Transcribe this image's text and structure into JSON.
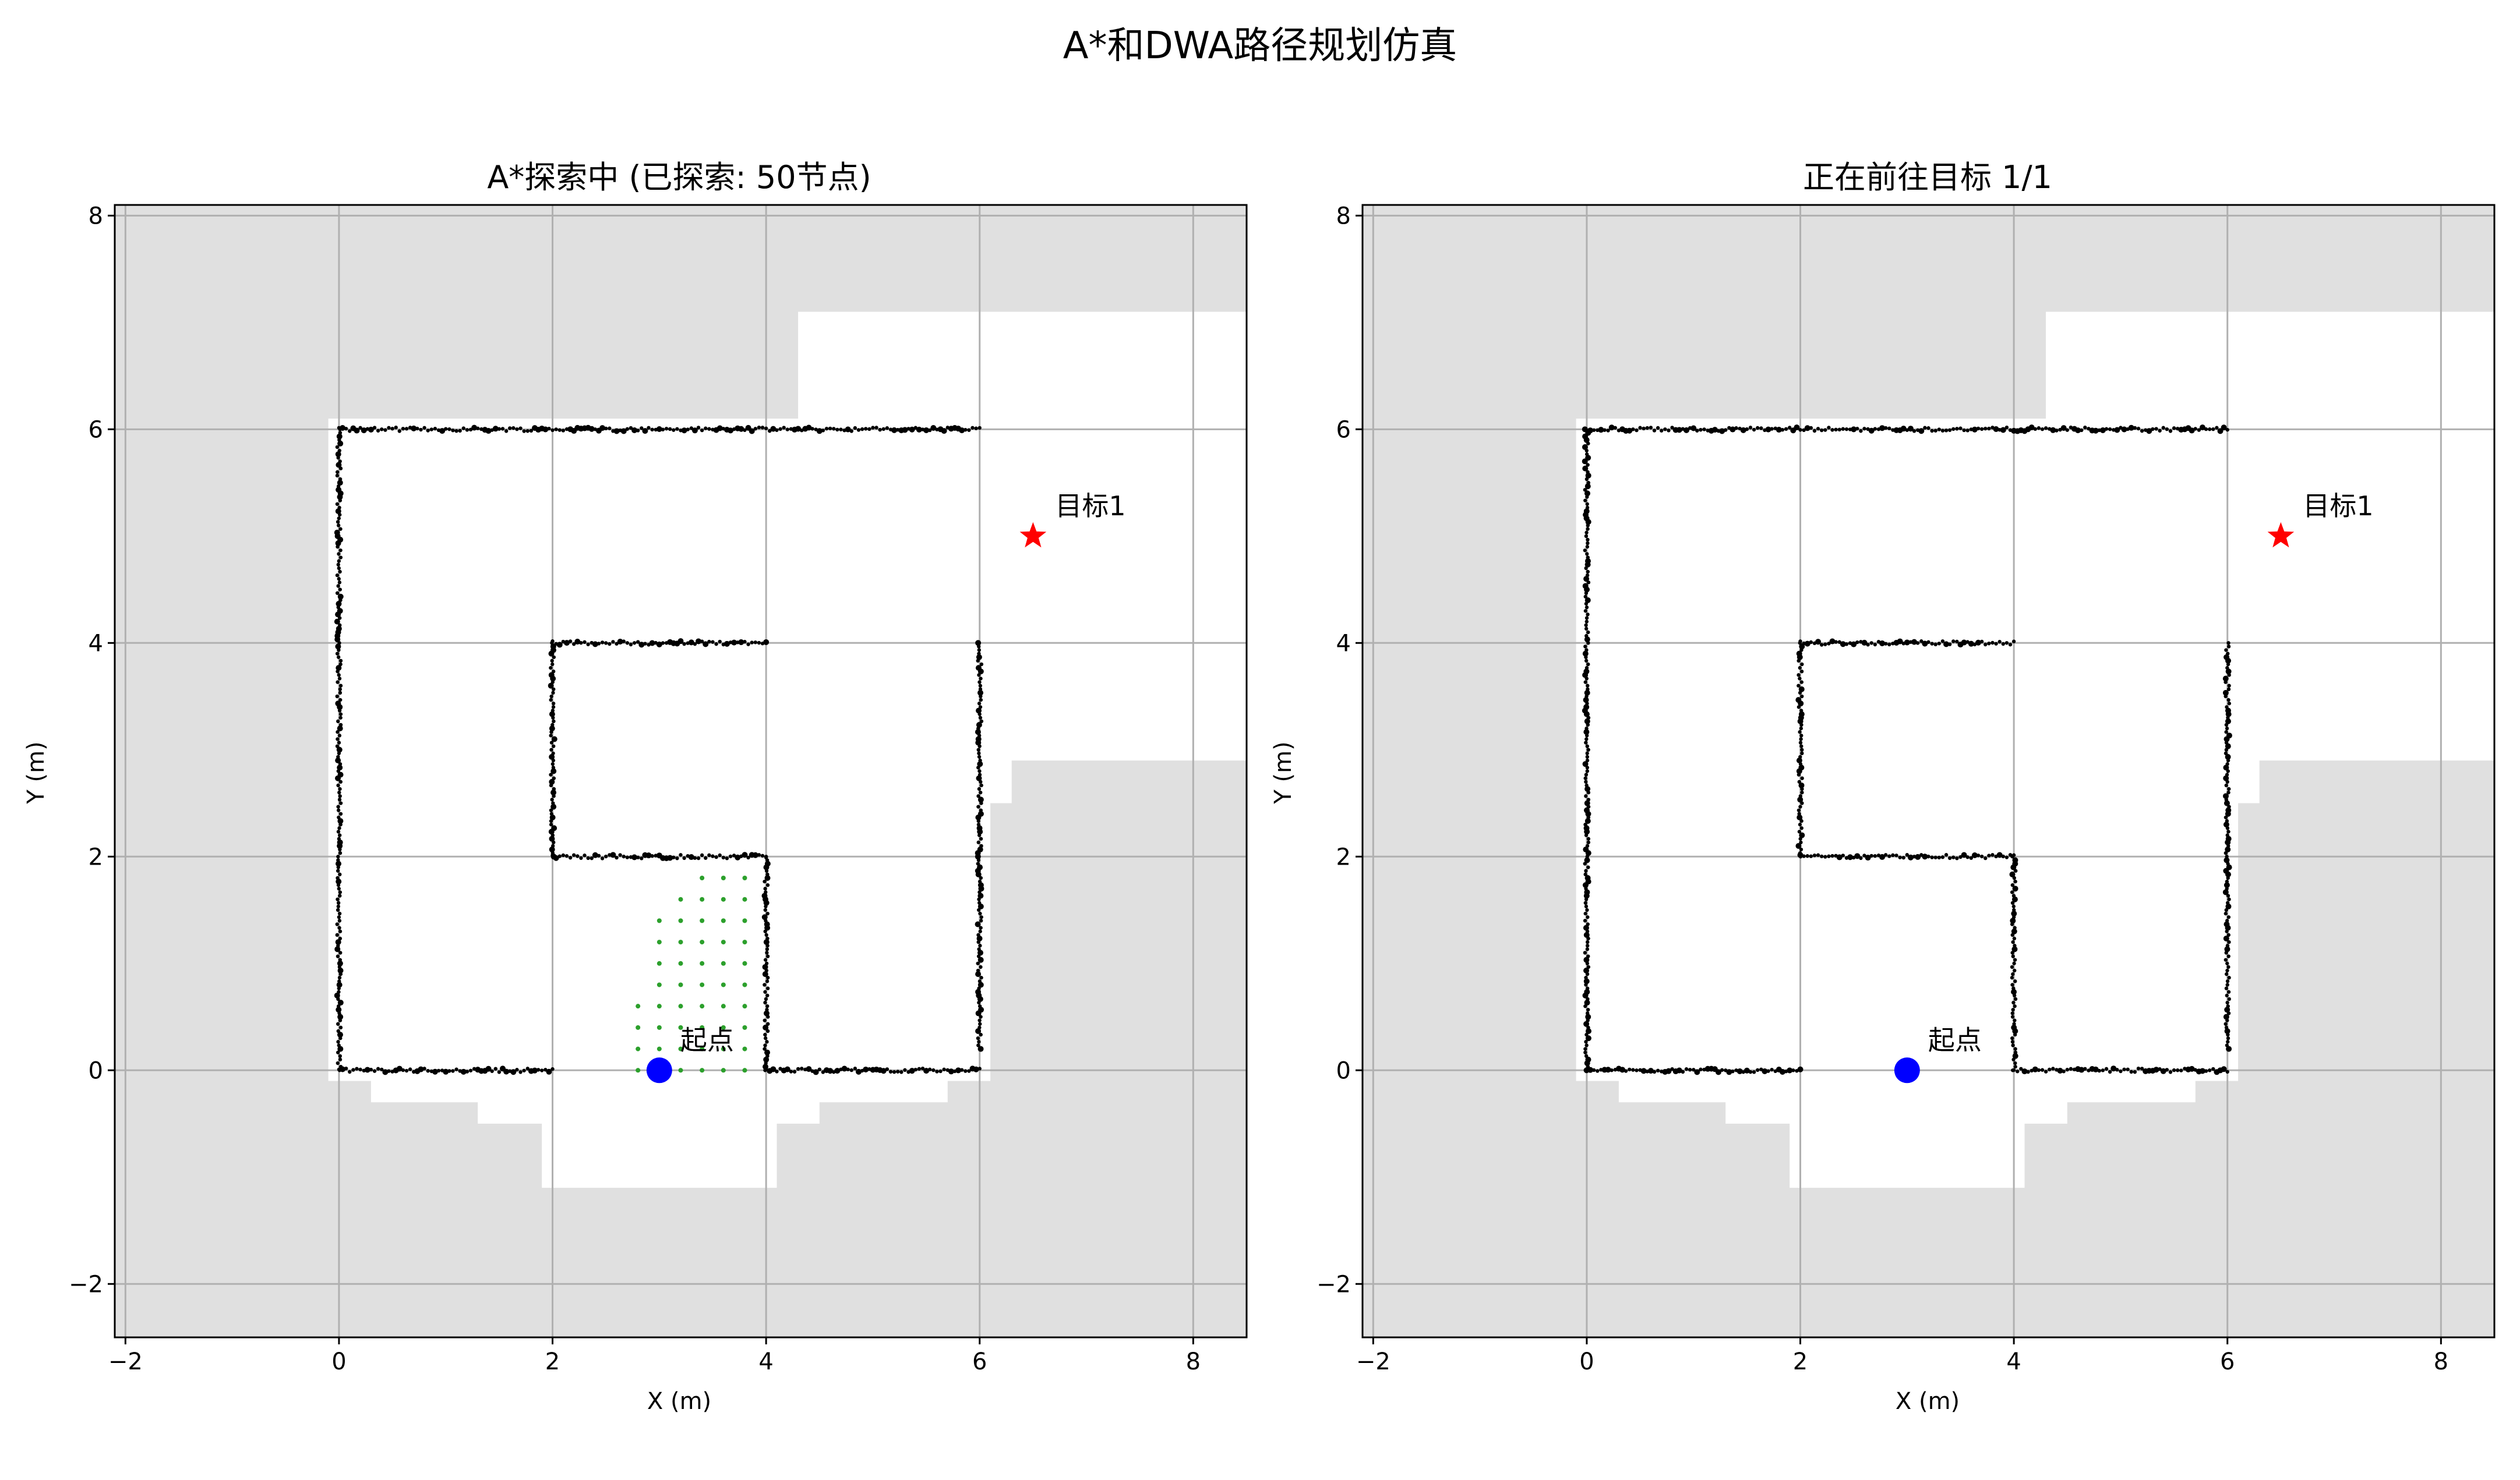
{
  "figure": {
    "suptitle": "A*和DWA路径规划仿真"
  },
  "colors": {
    "background": "#ffffff",
    "unknown_area": "#e0e0e0",
    "free_area": "#ffffff",
    "obstacle_points": "#000000",
    "frontier_points": "#2ca02c",
    "start_marker": "#0000ff",
    "goal_marker": "#ff0000",
    "grid": "#b0b0b0",
    "axes": "#000000"
  },
  "chart_data": [
    {
      "type": "scatter",
      "title": "A*探索中 (已探索: 50节点)",
      "xlabel": "X (m)",
      "ylabel": "Y (m)",
      "xlim": [
        -2.1,
        8.5
      ],
      "ylim": [
        -2.5,
        8.1
      ],
      "xticks": [
        -2,
        0,
        2,
        4,
        6,
        8
      ],
      "yticks": [
        -2,
        0,
        2,
        4,
        6,
        8
      ],
      "xtick_labels": [
        "−2",
        "0",
        "2",
        "4",
        "6",
        "8"
      ],
      "ytick_labels": [
        "−2",
        "0",
        "2",
        "4",
        "6",
        "8"
      ],
      "grid": true,
      "start": {
        "x": 3.0,
        "y": 0.0,
        "label": "起点"
      },
      "goals": [
        {
          "x": 6.5,
          "y": 5.0,
          "label": "目标1"
        }
      ],
      "known_region": [
        [
          -0.1,
          -0.1
        ],
        [
          0.3,
          -0.1
        ],
        [
          0.3,
          -0.3
        ],
        [
          1.3,
          -0.3
        ],
        [
          1.3,
          -0.5
        ],
        [
          1.9,
          -0.5
        ],
        [
          1.9,
          -1.1
        ],
        [
          4.1,
          -1.1
        ],
        [
          4.1,
          -0.5
        ],
        [
          4.5,
          -0.5
        ],
        [
          4.5,
          -0.3
        ],
        [
          5.7,
          -0.3
        ],
        [
          5.7,
          -0.1
        ],
        [
          6.1,
          -0.1
        ],
        [
          6.1,
          2.5
        ],
        [
          6.3,
          2.5
        ],
        [
          6.3,
          2.9
        ],
        [
          8.5,
          2.9
        ],
        [
          8.5,
          7.1
        ],
        [
          4.3,
          7.1
        ],
        [
          4.3,
          6.1
        ],
        [
          -0.1,
          6.1
        ]
      ],
      "walls": [
        {
          "x": [
            0,
            0
          ],
          "y": [
            0,
            6
          ]
        },
        {
          "x": [
            0,
            6
          ],
          "y": [
            6,
            6
          ]
        },
        {
          "x": [
            6,
            6
          ],
          "y": [
            0.2,
            4
          ]
        },
        {
          "x": [
            0,
            2
          ],
          "y": [
            0,
            0
          ]
        },
        {
          "x": [
            4,
            6
          ],
          "y": [
            0,
            0
          ]
        },
        {
          "x": [
            2,
            4
          ],
          "y": [
            4,
            4
          ]
        },
        {
          "x": [
            2,
            2
          ],
          "y": [
            2,
            4
          ]
        },
        {
          "x": [
            2,
            4
          ],
          "y": [
            2,
            2
          ]
        },
        {
          "x": [
            4,
            4
          ],
          "y": [
            0,
            2
          ]
        }
      ],
      "explored_nodes": [
        {
          "x": 2.8,
          "y": 0.2
        },
        {
          "x": 3.0,
          "y": 0.2
        },
        {
          "x": 3.2,
          "y": 0.2
        },
        {
          "x": 3.4,
          "y": 0.2
        },
        {
          "x": 3.6,
          "y": 0.2
        },
        {
          "x": 3.8,
          "y": 0.2
        },
        {
          "x": 2.8,
          "y": 0.4
        },
        {
          "x": 3.0,
          "y": 0.4
        },
        {
          "x": 3.2,
          "y": 0.4
        },
        {
          "x": 3.4,
          "y": 0.4
        },
        {
          "x": 3.6,
          "y": 0.4
        },
        {
          "x": 3.8,
          "y": 0.4
        },
        {
          "x": 2.8,
          "y": 0.6
        },
        {
          "x": 3.0,
          "y": 0.6
        },
        {
          "x": 3.2,
          "y": 0.6
        },
        {
          "x": 3.4,
          "y": 0.6
        },
        {
          "x": 3.6,
          "y": 0.6
        },
        {
          "x": 3.8,
          "y": 0.6
        },
        {
          "x": 3.0,
          "y": 0.8
        },
        {
          "x": 3.2,
          "y": 0.8
        },
        {
          "x": 3.4,
          "y": 0.8
        },
        {
          "x": 3.6,
          "y": 0.8
        },
        {
          "x": 3.8,
          "y": 0.8
        },
        {
          "x": 3.0,
          "y": 1.0
        },
        {
          "x": 3.2,
          "y": 1.0
        },
        {
          "x": 3.4,
          "y": 1.0
        },
        {
          "x": 3.6,
          "y": 1.0
        },
        {
          "x": 3.8,
          "y": 1.0
        },
        {
          "x": 3.0,
          "y": 1.2
        },
        {
          "x": 3.2,
          "y": 1.2
        },
        {
          "x": 3.4,
          "y": 1.2
        },
        {
          "x": 3.6,
          "y": 1.2
        },
        {
          "x": 3.8,
          "y": 1.2
        },
        {
          "x": 3.0,
          "y": 1.4
        },
        {
          "x": 3.2,
          "y": 1.4
        },
        {
          "x": 3.4,
          "y": 1.4
        },
        {
          "x": 3.6,
          "y": 1.4
        },
        {
          "x": 3.8,
          "y": 1.4
        },
        {
          "x": 3.2,
          "y": 1.6
        },
        {
          "x": 3.4,
          "y": 1.6
        },
        {
          "x": 3.6,
          "y": 1.6
        },
        {
          "x": 3.8,
          "y": 1.6
        },
        {
          "x": 3.4,
          "y": 1.8
        },
        {
          "x": 3.6,
          "y": 1.8
        },
        {
          "x": 3.8,
          "y": 1.8
        },
        {
          "x": 3.6,
          "y": 0.0
        },
        {
          "x": 3.4,
          "y": 0.0
        },
        {
          "x": 2.8,
          "y": 0.0
        },
        {
          "x": 3.8,
          "y": 0.0
        },
        {
          "x": 3.2,
          "y": 0.0
        }
      ]
    },
    {
      "type": "scatter",
      "title": "正在前往目标 1/1",
      "xlabel": "X (m)",
      "ylabel": "Y (m)",
      "xlim": [
        -2.1,
        8.5
      ],
      "ylim": [
        -2.5,
        8.1
      ],
      "xticks": [
        -2,
        0,
        2,
        4,
        6,
        8
      ],
      "yticks": [
        -2,
        0,
        2,
        4,
        6,
        8
      ],
      "xtick_labels": [
        "−2",
        "0",
        "2",
        "4",
        "6",
        "8"
      ],
      "ytick_labels": [
        "−2",
        "0",
        "2",
        "4",
        "6",
        "8"
      ],
      "grid": true,
      "start": {
        "x": 3.0,
        "y": 0.0,
        "label": "起点"
      },
      "goals": [
        {
          "x": 6.5,
          "y": 5.0,
          "label": "目标1"
        }
      ],
      "known_region": [
        [
          -0.1,
          -0.1
        ],
        [
          0.3,
          -0.1
        ],
        [
          0.3,
          -0.3
        ],
        [
          1.3,
          -0.3
        ],
        [
          1.3,
          -0.5
        ],
        [
          1.9,
          -0.5
        ],
        [
          1.9,
          -1.1
        ],
        [
          4.1,
          -1.1
        ],
        [
          4.1,
          -0.5
        ],
        [
          4.5,
          -0.5
        ],
        [
          4.5,
          -0.3
        ],
        [
          5.7,
          -0.3
        ],
        [
          5.7,
          -0.1
        ],
        [
          6.1,
          -0.1
        ],
        [
          6.1,
          2.5
        ],
        [
          6.3,
          2.5
        ],
        [
          6.3,
          2.9
        ],
        [
          8.5,
          2.9
        ],
        [
          8.5,
          7.1
        ],
        [
          4.3,
          7.1
        ],
        [
          4.3,
          6.1
        ],
        [
          -0.1,
          6.1
        ]
      ],
      "walls": [
        {
          "x": [
            0,
            0
          ],
          "y": [
            0,
            6
          ]
        },
        {
          "x": [
            0,
            6
          ],
          "y": [
            6,
            6
          ]
        },
        {
          "x": [
            6,
            6
          ],
          "y": [
            0.2,
            4
          ]
        },
        {
          "x": [
            0,
            2
          ],
          "y": [
            0,
            0
          ]
        },
        {
          "x": [
            4,
            6
          ],
          "y": [
            0,
            0
          ]
        },
        {
          "x": [
            2,
            4
          ],
          "y": [
            4,
            4
          ]
        },
        {
          "x": [
            2,
            2
          ],
          "y": [
            2,
            4
          ]
        },
        {
          "x": [
            2,
            4
          ],
          "y": [
            2,
            2
          ]
        },
        {
          "x": [
            4,
            4
          ],
          "y": [
            0,
            2
          ]
        }
      ],
      "explored_nodes": []
    }
  ]
}
